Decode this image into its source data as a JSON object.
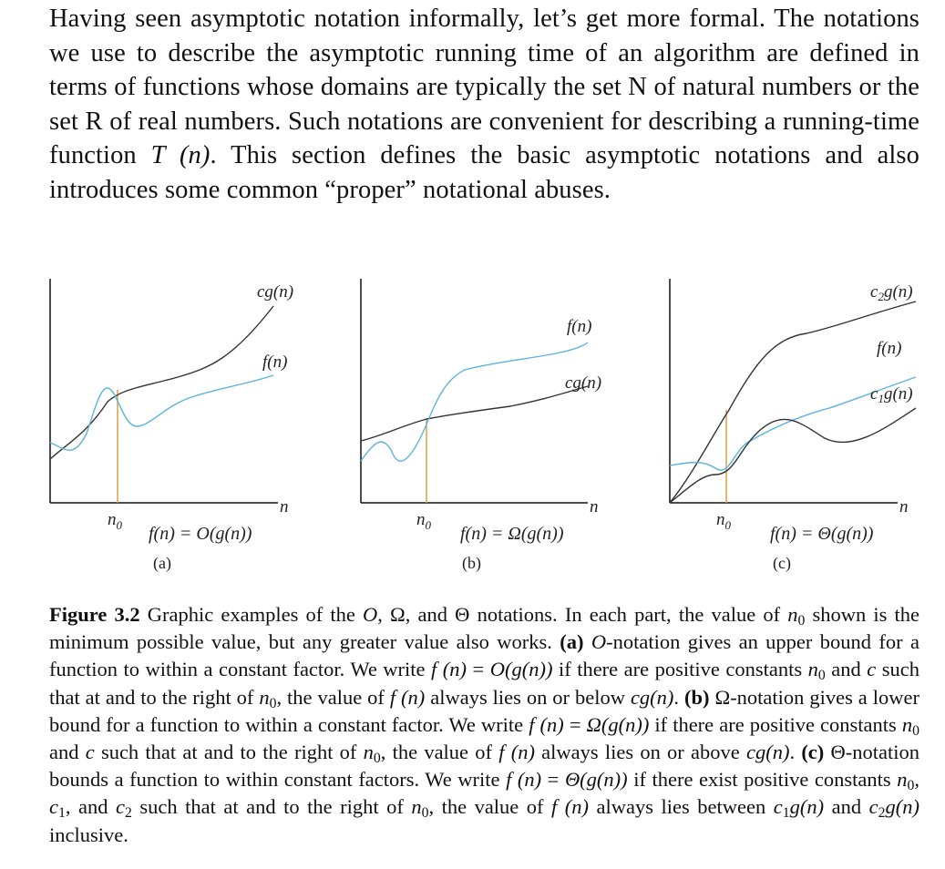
{
  "intro": {
    "part1": "Having seen asymptotic notation informally, let’s get more formal. The notations we use to describe the asymptotic running time of an algorithm are defined in terms of functions whose domains are typically the set N of natural numbers or the set R of real numbers. Such notations are convenient for describing a running-time function ",
    "func": "T (n)",
    "part2": ". This section defines the basic asymptotic notations and also introduces some common “proper” notational abuses."
  },
  "figure": {
    "panels": [
      {
        "part": "(a)",
        "formula": "f(n) = O(g(n))",
        "upper_label": "cg(n)",
        "lower_label": "f(n)",
        "n0_label": "n",
        "n0_sub": "0",
        "axis_label": "n"
      },
      {
        "part": "(b)",
        "formula": "f(n) = Ω(g(n))",
        "upper_label": "f(n)",
        "lower_label": "cg(n)",
        "n0_label": "n",
        "n0_sub": "0",
        "axis_label": "n"
      },
      {
        "part": "(c)",
        "formula": "f(n) = Θ(g(n))",
        "upper_label": "c",
        "upper_sub": "2",
        "upper_rest": "g(n)",
        "middle_label": "f(n)",
        "lower_label": "c",
        "lower_sub": "1",
        "lower_rest": "g(n)",
        "n0_label": "n",
        "n0_sub": "0",
        "axis_label": "n"
      }
    ],
    "colors": {
      "black_curve": "#333333",
      "blue_curve": "#5bb3e0",
      "n0_line": "#e0a040",
      "axis": "#111111"
    }
  },
  "caption": {
    "s1": "Figure 3.2",
    "s2": " Graphic examples of the ",
    "O": "O",
    "s3": ", ",
    "Omega": "Ω",
    "s4": ", and ",
    "Theta": "Θ",
    "s5": " notations. In each part, the value of ",
    "n": "n",
    "zero": "0",
    "s6": " shown is the minimum possible value, but any greater value also works. ",
    "a": "(a)",
    "s7": "-notation gives an upper bound for a function to within a constant factor. We write ",
    "fn": "f (n)",
    "eq": " = ",
    "Og": "O(g(n))",
    "s8": " if there are positive constants ",
    "s9": " and ",
    "c": "c",
    "s10": " such that at and to the right of ",
    "s11": ", the value of ",
    "s12": " always lies on or below ",
    "cg": "cg(n)",
    "s13": ". ",
    "b": "(b)",
    "s14": "-notation gives a lower bound for a function to within a constant factor. We write ",
    "f": "f",
    "n_paren": "(n)",
    "Omg": "Ω(g(n))",
    "s15": " if there are positive constants ",
    "s16": ", the value of ",
    "fn2": "f (n)",
    "s17": " always lies on or above ",
    "s18": ". ",
    "c_part": "(c)",
    "s19": "-notation bounds a function to within constant factors. We write ",
    "Thg": "Θ(g(n))",
    "s20": " if there exist positive constants ",
    "s21": ", ",
    "one": "1",
    "s22": ", and ",
    "two": "2",
    "s23": " such that at and to the right of ",
    "s24": " always lies between ",
    "g": "g(n)",
    "s25": " and ",
    "s26": " inclusive."
  }
}
